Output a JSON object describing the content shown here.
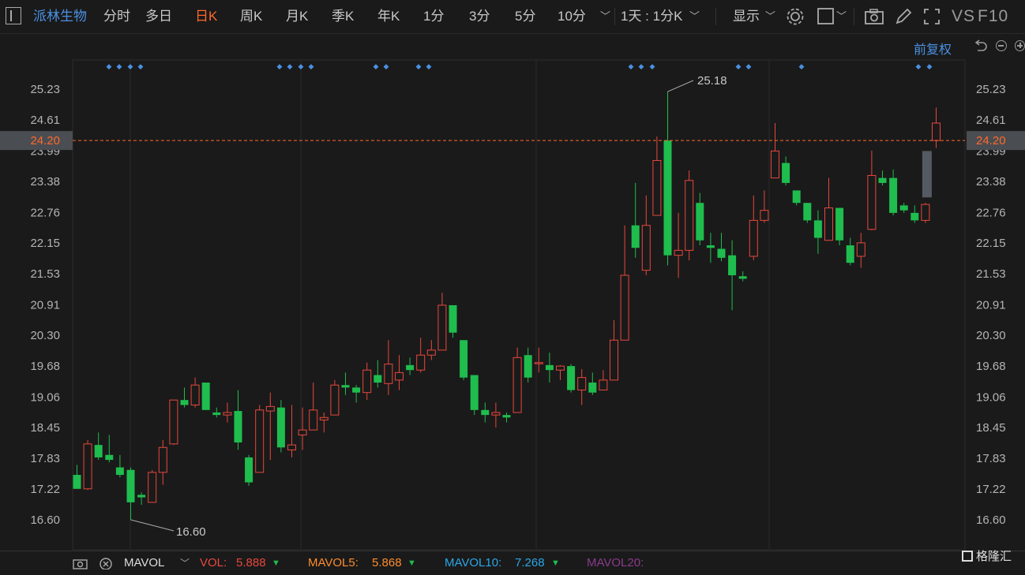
{
  "toolbar": {
    "stock_name": "派林生物",
    "periods": [
      "分时",
      "多日",
      "日K",
      "周K",
      "月K",
      "季K",
      "年K",
      "1分",
      "3分",
      "5分",
      "10分"
    ],
    "active_period": "日K",
    "combo_label": "1天 : 1分K",
    "display_label": "显示",
    "vs_label": "VS",
    "f10_label": "F10"
  },
  "adjust_label": "前复权",
  "price_axis": {
    "ticks": [
      "25.23",
      "24.61",
      "23.99",
      "23.38",
      "22.76",
      "22.15",
      "21.53",
      "20.91",
      "20.30",
      "19.68",
      "19.06",
      "18.45",
      "17.83",
      "17.22",
      "16.60"
    ],
    "current_price": "24.20"
  },
  "annotations": {
    "high_label": "25.18",
    "low_label": "16.60"
  },
  "colors": {
    "up": "#e8473d",
    "down": "#1fbd4e",
    "accent": "#ff6a2b",
    "blue": "#4a90e2"
  },
  "chart_data": {
    "type": "candlestick",
    "y_range": [
      16.2,
      25.6
    ],
    "candles": [
      [
        17.5,
        17.22,
        17.7,
        17.22
      ],
      [
        17.22,
        18.12,
        18.2,
        17.2
      ],
      [
        18.1,
        17.85,
        18.35,
        17.8
      ],
      [
        17.9,
        17.8,
        18.3,
        17.75
      ],
      [
        17.65,
        17.5,
        17.9,
        17.45
      ],
      [
        17.6,
        16.95,
        17.65,
        16.6
      ],
      [
        17.1,
        17.05,
        17.15,
        16.9
      ],
      [
        16.95,
        17.55,
        17.6,
        16.95
      ],
      [
        17.55,
        18.05,
        18.2,
        17.3
      ],
      [
        18.12,
        19.0,
        19.0,
        18.1
      ],
      [
        19.0,
        18.9,
        19.25,
        18.85
      ],
      [
        18.9,
        19.3,
        19.45,
        18.85
      ],
      [
        19.35,
        18.8,
        19.35,
        18.8
      ],
      [
        18.75,
        18.7,
        18.85,
        18.65
      ],
      [
        18.7,
        18.75,
        18.95,
        18.55
      ],
      [
        18.78,
        18.15,
        19.2,
        18.0
      ],
      [
        17.85,
        17.35,
        17.9,
        17.28
      ],
      [
        17.55,
        18.8,
        18.9,
        17.55
      ],
      [
        18.78,
        18.87,
        19.15,
        17.8
      ],
      [
        18.85,
        18.05,
        19.0,
        17.95
      ],
      [
        18.0,
        18.1,
        18.9,
        17.85
      ],
      [
        18.3,
        18.4,
        18.85,
        18.0
      ],
      [
        18.4,
        18.8,
        19.35,
        18.4
      ],
      [
        18.6,
        18.65,
        18.75,
        18.35
      ],
      [
        18.7,
        19.3,
        19.4,
        18.7
      ],
      [
        19.3,
        19.25,
        19.55,
        19.1
      ],
      [
        19.25,
        19.15,
        19.3,
        18.95
      ],
      [
        19.15,
        19.6,
        19.75,
        19.0
      ],
      [
        19.5,
        19.35,
        19.8,
        19.25
      ],
      [
        19.33,
        19.72,
        20.2,
        19.1
      ],
      [
        19.4,
        19.55,
        19.9,
        19.2
      ],
      [
        19.7,
        19.6,
        19.85,
        19.5
      ],
      [
        19.6,
        19.9,
        20.25,
        19.55
      ],
      [
        19.9,
        20.0,
        20.2,
        19.8
      ],
      [
        20.0,
        20.9,
        21.15,
        20.0
      ],
      [
        20.9,
        20.35,
        20.9,
        20.25
      ],
      [
        20.2,
        19.45,
        20.2,
        19.4
      ],
      [
        19.5,
        18.8,
        19.5,
        18.7
      ],
      [
        18.8,
        18.7,
        18.95,
        18.55
      ],
      [
        18.7,
        18.75,
        18.95,
        18.45
      ],
      [
        18.7,
        18.65,
        18.75,
        18.55
      ],
      [
        18.75,
        19.85,
        20.05,
        18.75
      ],
      [
        19.9,
        19.45,
        20.05,
        19.35
      ],
      [
        19.75,
        19.75,
        20.05,
        19.55
      ],
      [
        19.7,
        19.6,
        19.95,
        19.35
      ],
      [
        19.6,
        19.68,
        19.7,
        19.4
      ],
      [
        19.68,
        19.2,
        19.72,
        19.15
      ],
      [
        19.2,
        19.45,
        19.62,
        18.9
      ],
      [
        19.35,
        19.15,
        19.55,
        19.1
      ],
      [
        19.2,
        19.4,
        19.6,
        19.2
      ],
      [
        19.4,
        20.2,
        20.6,
        19.4
      ],
      [
        20.2,
        21.5,
        22.5,
        20.2
      ],
      [
        22.5,
        22.05,
        23.35,
        21.85
      ],
      [
        21.6,
        22.5,
        23.1,
        21.5
      ],
      [
        22.7,
        23.8,
        24.28,
        22.7
      ],
      [
        24.2,
        21.9,
        25.18,
        21.7
      ],
      [
        21.9,
        22.0,
        22.75,
        21.45
      ],
      [
        22.0,
        23.4,
        23.6,
        21.8
      ],
      [
        22.95,
        22.2,
        23.15,
        22.1
      ],
      [
        22.1,
        22.05,
        22.35,
        21.75
      ],
      [
        22.03,
        21.85,
        22.35,
        21.78
      ],
      [
        21.9,
        21.5,
        22.2,
        20.8
      ],
      [
        21.48,
        21.43,
        21.58,
        21.38
      ],
      [
        21.88,
        22.6,
        23.1,
        21.8
      ],
      [
        22.6,
        22.8,
        23.2,
        22.55
      ],
      [
        23.45,
        23.99,
        24.55,
        23.45
      ],
      [
        23.75,
        23.35,
        23.88,
        23.3
      ],
      [
        23.2,
        22.95,
        23.2,
        22.9
      ],
      [
        22.95,
        22.6,
        22.95,
        22.55
      ],
      [
        22.6,
        22.25,
        22.8,
        21.93
      ],
      [
        22.2,
        22.85,
        23.45,
        22.2
      ],
      [
        22.85,
        22.2,
        22.85,
        22.1
      ],
      [
        22.1,
        21.75,
        22.25,
        21.7
      ],
      [
        21.88,
        22.15,
        22.35,
        21.65
      ],
      [
        22.42,
        23.5,
        24.0,
        22.4
      ],
      [
        23.45,
        23.35,
        23.6,
        23.3
      ],
      [
        23.45,
        22.75,
        23.62,
        22.7
      ],
      [
        22.9,
        22.8,
        22.95,
        22.75
      ],
      [
        22.75,
        22.6,
        22.9,
        22.55
      ],
      [
        22.6,
        22.92,
        22.95,
        22.55
      ],
      [
        24.2,
        24.55,
        24.86,
        24.05
      ]
    ],
    "ghost_bar": {
      "top": 23.99,
      "bottom": 23.06
    }
  },
  "markers": [
    "◆",
    "◆",
    "◆",
    "◆",
    "◆",
    "◆",
    "◆",
    "◆",
    "◆",
    "◆",
    "◆",
    "◆",
    "◆",
    "◆",
    "◆",
    "◆",
    "◆",
    "◆",
    "◆",
    "◆",
    "◆"
  ],
  "bottom_bar": {
    "indicator": "MAVOL",
    "vol_label": "VOL:",
    "vol_value": "5.888",
    "mavol5_label": "MAVOL5:",
    "mavol5_value": "5.868",
    "mavol10_label": "MAVOL10:",
    "mavol10_value": "7.268",
    "mavol20_label": "MAVOL20:",
    "logo_text": "格隆汇"
  }
}
